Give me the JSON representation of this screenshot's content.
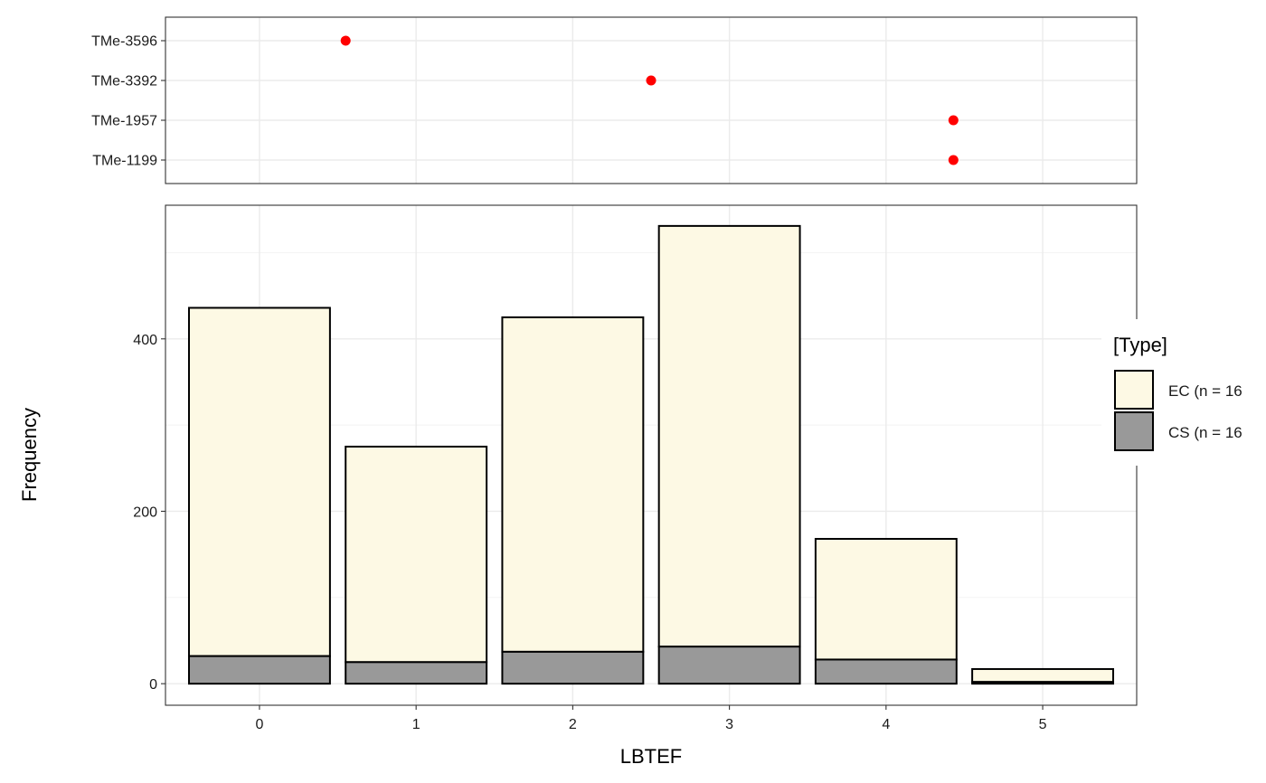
{
  "chart_data": [
    {
      "type": "scatter",
      "panel": "top",
      "categories": [
        "TMe-3596",
        "TMe-3392",
        "TMe-1957",
        "TMe-1199"
      ],
      "points": [
        {
          "label": "TMe-3596",
          "x": 0.55
        },
        {
          "label": "TMe-3392",
          "x": 2.5
        },
        {
          "label": "TMe-1957",
          "x": 4.43
        },
        {
          "label": "TMe-1199",
          "x": 4.43
        }
      ],
      "point_color": "#ff0000",
      "xlim": [
        -0.6,
        5.6
      ],
      "grid": true
    },
    {
      "type": "bar",
      "panel": "bottom",
      "stacked": true,
      "categories": [
        "0",
        "1",
        "2",
        "3",
        "4",
        "5"
      ],
      "series": [
        {
          "name": "EC (n = 16",
          "color": "#fdf9e4",
          "values": [
            404,
            250,
            388,
            488,
            140,
            15
          ]
        },
        {
          "name": "CS (n = 16",
          "color": "#999999",
          "values": [
            32,
            25,
            37,
            43,
            28,
            2
          ]
        }
      ],
      "xlabel": "LBTEF",
      "ylabel": "Frequency",
      "yticks": [
        0,
        200,
        400
      ],
      "ylim": [
        -25,
        555
      ],
      "xlim": [
        -0.6,
        5.6
      ],
      "grid": true,
      "legend": {
        "title": "[Type]",
        "placement": "right"
      }
    }
  ]
}
